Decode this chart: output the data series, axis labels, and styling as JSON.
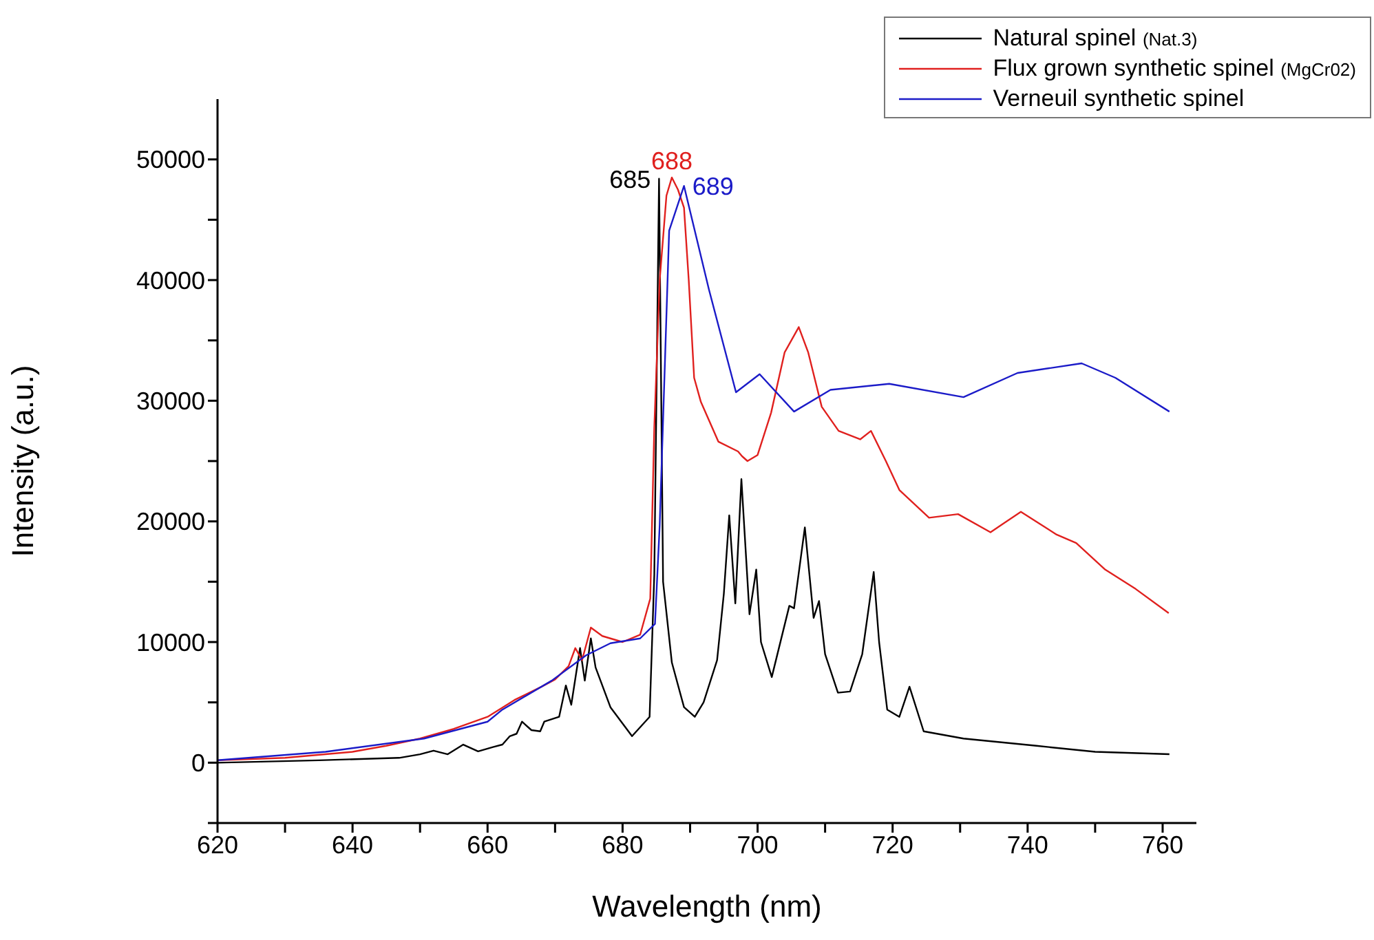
{
  "chart_data": {
    "type": "line",
    "xlabel": "Wavelength (nm)",
    "ylabel": "Intensity (a.u.)",
    "xlim": [
      620,
      765
    ],
    "ylim": [
      -5000,
      55000
    ],
    "xticks": [
      620,
      {
        "value": 630,
        "label": null
      },
      640,
      {
        "value": 650,
        "label": null
      },
      660,
      {
        "value": 670,
        "label": null
      },
      680,
      {
        "value": 690,
        "label": null
      },
      700,
      {
        "value": 710,
        "label": null
      },
      720,
      {
        "value": 730,
        "label": null
      },
      740,
      {
        "value": 750,
        "label": null
      },
      760
    ],
    "yticks": [
      {
        "value": -5000,
        "label": null
      },
      0,
      {
        "value": 5000,
        "label": null
      },
      10000,
      {
        "value": 15000,
        "label": null
      },
      20000,
      {
        "value": 25000,
        "label": null
      },
      30000,
      {
        "value": 35000,
        "label": null
      },
      40000,
      {
        "value": 45000,
        "label": null
      },
      50000
    ],
    "legend": "top right",
    "marker": "none",
    "line_style": "solid",
    "annotations": [
      {
        "text": "685",
        "x": 685.4,
        "y": 48400
      },
      {
        "text": "688",
        "x": 687.3,
        "y": 48500
      },
      {
        "text": "689",
        "x": 689.1,
        "y": 47800
      }
    ],
    "series": [
      {
        "name": "Natural spinel (Nat.3)",
        "color": "#000000",
        "x": [
          620,
          635,
          646.9,
          650,
          652,
          654.1,
          656.4,
          658.6,
          660.8,
          662.2,
          663.3,
          664.3,
          665.1,
          666.5,
          667.8,
          668.4,
          670.6,
          671.6,
          672.4,
          673.7,
          674.4,
          675.3,
          676,
          678.2,
          681.4,
          684,
          684.7,
          685.4,
          686,
          687.3,
          689.1,
          690.7,
          692,
          694,
          695,
          695.8,
          696.7,
          697.6,
          698.8,
          699.8,
          700.5,
          702.1,
          704.7,
          705.4,
          707,
          708.3,
          709.1,
          710,
          711.9,
          713.7,
          715.5,
          717.2,
          718,
          719.2,
          721,
          722.5,
          724.6,
          730.5,
          741.3,
          750,
          761
        ],
        "values": [
          0,
          200,
          400,
          700,
          1000,
          700,
          1500,
          940,
          1300,
          1500,
          2200,
          2400,
          3400,
          2700,
          2600,
          3400,
          3800,
          6400,
          4800,
          9500,
          6800,
          10300,
          7900,
          4600,
          2200,
          3800,
          15600,
          48400,
          15000,
          8300,
          4600,
          3800,
          5000,
          8500,
          14000,
          20500,
          13200,
          23500,
          12300,
          16000,
          10000,
          7100,
          13000,
          12800,
          19500,
          12000,
          13400,
          9000,
          5800,
          5900,
          9000,
          15800,
          10000,
          4400,
          3800,
          6300,
          2600,
          2000,
          1400,
          900,
          700
        ]
      },
      {
        "name": "Flux grown synthetic spinel (MgCr02)",
        "color": "#e0201e",
        "x": [
          620,
          630,
          636,
          640,
          645,
          650,
          655,
          660,
          664,
          668,
          670,
          672,
          673,
          674,
          675.3,
          677,
          680,
          682.6,
          684.1,
          684.7,
          685.5,
          686.5,
          687.3,
          688.2,
          689.1,
          689.8,
          690.6,
          691.6,
          694.2,
          697.1,
          697.7,
          698.5,
          700,
          702,
          704,
          706.1,
          707.5,
          709.5,
          712,
          715.2,
          716.8,
          719,
          721,
          725.4,
          729.7,
          734.5,
          739,
          744.3,
          747.2,
          751.5,
          756,
          760.9
        ],
        "values": [
          200,
          400,
          700,
          900,
          1400,
          2000,
          2800,
          3800,
          5200,
          6300,
          6900,
          8000,
          9500,
          8500,
          11200,
          10500,
          10000,
          10600,
          13600,
          27800,
          40000,
          47000,
          48500,
          47500,
          46000,
          40000,
          31900,
          29900,
          26600,
          25800,
          25400,
          25000,
          25500,
          29000,
          34000,
          36100,
          34000,
          29500,
          27500,
          26800,
          27500,
          25000,
          22600,
          20300,
          20600,
          19100,
          20800,
          18900,
          18200,
          16000,
          14400,
          12400
        ]
      },
      {
        "name": "Verneuil synthetic spinel",
        "color": "#1b1bc8",
        "x": [
          620,
          636,
          650.6,
          660,
          662.2,
          669.5,
          674.6,
          678.2,
          682.6,
          684.8,
          685.5,
          686.9,
          689.1,
          692.8,
          696.8,
          700.3,
          705.4,
          710.8,
          719.5,
          730.5,
          738.5,
          748,
          753,
          761
        ],
        "values": [
          200,
          900,
          2000,
          3400,
          4400,
          6800,
          8900,
          9900,
          10300,
          11500,
          19700,
          44100,
          47800,
          39200,
          30700,
          32200,
          29100,
          30900,
          31400,
          30300,
          32300,
          33100,
          31900,
          29100
        ]
      }
    ]
  }
}
